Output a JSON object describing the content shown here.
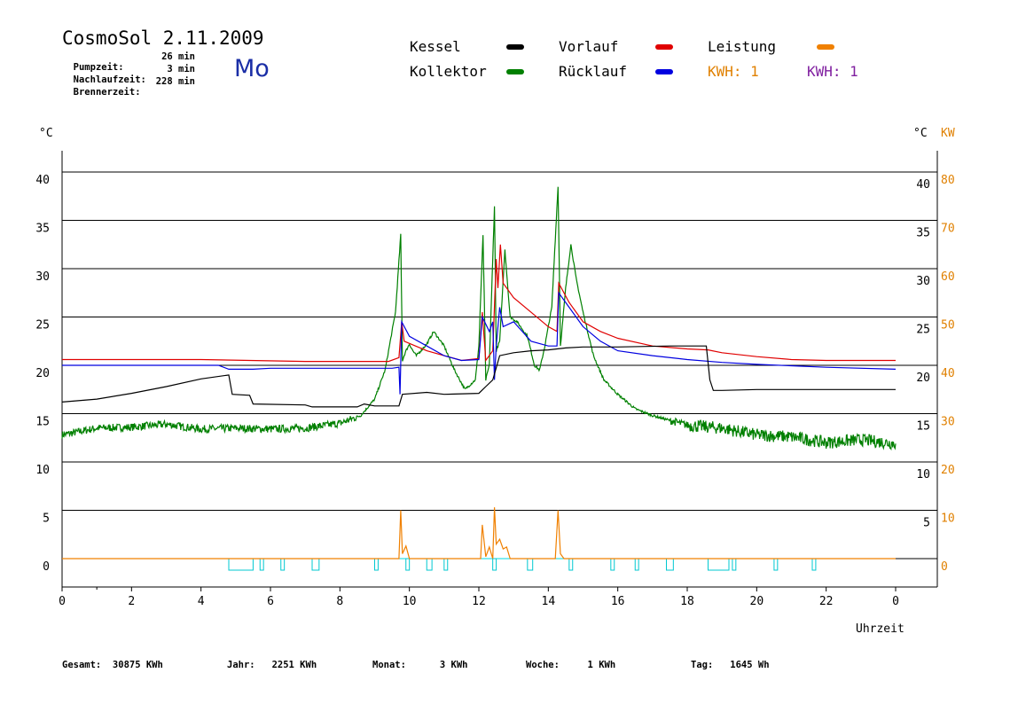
{
  "header": {
    "title": "CosmoSol 2.11.2009",
    "weekday": "Mo",
    "info": [
      {
        "label": "Pumpzeit:",
        "value": "26 min"
      },
      {
        "label": "Nachlaufzeit:",
        "value": "3 min"
      },
      {
        "label": "Brennerzeit:",
        "value": "228 min"
      }
    ]
  },
  "legend": {
    "items": [
      {
        "label": "Kessel",
        "color": "#000000"
      },
      {
        "label": "Vorlauf",
        "color": "#e00000"
      },
      {
        "label": "Leistung",
        "color": "#f08000"
      },
      {
        "label": "Kollektor",
        "color": "#008000"
      },
      {
        "label": "Rücklauf",
        "color": "#0000e0"
      }
    ],
    "kwh": [
      {
        "label": "KWH: 1",
        "color": "#e08000"
      },
      {
        "label": "KWH: 1",
        "color": "#8020a0"
      }
    ]
  },
  "axes": {
    "left_unit": "°C",
    "right_unit_c": "°C",
    "right_unit_kw": "KW",
    "xlabel": "Uhrzeit"
  },
  "footer": [
    {
      "label": "Gesamt:",
      "value": "30875 KWh"
    },
    {
      "label": "Jahr:",
      "value": "2251 KWh"
    },
    {
      "label": "Monat:",
      "value": "3 KWh"
    },
    {
      "label": "Woche:",
      "value": "1 KWh"
    },
    {
      "label": "Tag:",
      "value": "1645 Wh"
    }
  ],
  "chart_data": {
    "type": "line",
    "title": "CosmoSol 2.11.2009",
    "xlabel": "Uhrzeit",
    "ylabel": "°C",
    "y2label": "KW",
    "xlim": [
      0,
      24
    ],
    "ylim": [
      -3,
      45
    ],
    "grid": true,
    "x_ticks": [
      "0",
      "2",
      "4",
      "6",
      "8",
      "10",
      "12",
      "14",
      "16",
      "18",
      "20",
      "22",
      "0"
    ],
    "y_ticks_left": [
      0,
      5,
      10,
      15,
      20,
      25,
      30,
      35,
      40
    ],
    "y_ticks_right_c": [
      5,
      10,
      15,
      20,
      25,
      30,
      35,
      40
    ],
    "y_ticks_right_kw": [
      0,
      10,
      20,
      30,
      40,
      50,
      60,
      70,
      80
    ],
    "series": [
      {
        "name": "Kollektor",
        "color": "#008000",
        "points": [
          [
            0,
            12.8
          ],
          [
            1,
            13.5
          ],
          [
            2,
            13.6
          ],
          [
            3,
            13.9
          ],
          [
            4,
            13.4
          ],
          [
            5,
            13.5
          ],
          [
            6,
            13.4
          ],
          [
            7,
            13.5
          ],
          [
            8,
            14.0
          ],
          [
            8.6,
            14.8
          ],
          [
            9.0,
            16.5
          ],
          [
            9.3,
            19.5
          ],
          [
            9.6,
            25.5
          ],
          [
            9.75,
            33.5
          ],
          [
            9.8,
            20.5
          ],
          [
            9.9,
            21.5
          ],
          [
            10.0,
            22.2
          ],
          [
            10.1,
            21.5
          ],
          [
            10.2,
            21.0
          ],
          [
            10.5,
            22.2
          ],
          [
            10.7,
            23.5
          ],
          [
            11.0,
            22.0
          ],
          [
            11.3,
            19.5
          ],
          [
            11.6,
            17.5
          ],
          [
            11.9,
            18.5
          ],
          [
            12.0,
            22.0
          ],
          [
            12.12,
            33.5
          ],
          [
            12.2,
            18.5
          ],
          [
            12.3,
            20.0
          ],
          [
            12.45,
            36.5
          ],
          [
            12.5,
            21.5
          ],
          [
            12.6,
            22.5
          ],
          [
            12.75,
            32.0
          ],
          [
            12.9,
            25.0
          ],
          [
            13.1,
            24.5
          ],
          [
            13.4,
            23.0
          ],
          [
            13.6,
            20.0
          ],
          [
            13.75,
            19.5
          ],
          [
            13.9,
            22.0
          ],
          [
            14.1,
            26.0
          ],
          [
            14.2,
            33.0
          ],
          [
            14.28,
            38.5
          ],
          [
            14.35,
            22.0
          ],
          [
            14.5,
            28.0
          ],
          [
            14.65,
            32.5
          ],
          [
            14.8,
            29.0
          ],
          [
            15.0,
            25.5
          ],
          [
            15.3,
            21.0
          ],
          [
            15.6,
            18.5
          ],
          [
            16.0,
            17.0
          ],
          [
            16.5,
            15.5
          ],
          [
            17.0,
            14.8
          ],
          [
            18.0,
            13.8
          ],
          [
            19.0,
            13.5
          ],
          [
            20.0,
            12.8
          ],
          [
            21.0,
            12.6
          ],
          [
            22.0,
            12.0
          ],
          [
            23.0,
            12.3
          ],
          [
            24.0,
            11.9
          ]
        ],
        "noisy": true
      },
      {
        "name": "Vorlauf",
        "color": "#e00000",
        "points": [
          [
            0,
            20.6
          ],
          [
            4,
            20.6
          ],
          [
            7,
            20.4
          ],
          [
            8,
            20.4
          ],
          [
            9.4,
            20.4
          ],
          [
            9.7,
            20.8
          ],
          [
            9.78,
            24.5
          ],
          [
            9.85,
            22.5
          ],
          [
            10.5,
            21.5
          ],
          [
            11.5,
            20.5
          ],
          [
            12.0,
            20.7
          ],
          [
            12.1,
            25.5
          ],
          [
            12.2,
            20.5
          ],
          [
            12.4,
            21.5
          ],
          [
            12.5,
            31.0
          ],
          [
            12.55,
            28.0
          ],
          [
            12.62,
            32.5
          ],
          [
            12.7,
            28.5
          ],
          [
            13.0,
            27.0
          ],
          [
            13.5,
            25.5
          ],
          [
            14.0,
            24.0
          ],
          [
            14.25,
            23.5
          ],
          [
            14.3,
            28.5
          ],
          [
            14.6,
            26.5
          ],
          [
            15.0,
            24.5
          ],
          [
            15.5,
            23.5
          ],
          [
            16.0,
            22.8
          ],
          [
            17.0,
            22.0
          ],
          [
            18.0,
            21.7
          ],
          [
            18.6,
            21.6
          ],
          [
            19.0,
            21.3
          ],
          [
            20.0,
            20.9
          ],
          [
            21.0,
            20.6
          ],
          [
            22.0,
            20.5
          ],
          [
            24.0,
            20.5
          ]
        ]
      },
      {
        "name": "Rücklauf",
        "color": "#0000e0",
        "points": [
          [
            0,
            20.0
          ],
          [
            4.5,
            20.0
          ],
          [
            4.8,
            19.6
          ],
          [
            5.5,
            19.6
          ],
          [
            6.0,
            19.7
          ],
          [
            8.0,
            19.7
          ],
          [
            9.5,
            19.7
          ],
          [
            9.7,
            19.8
          ],
          [
            9.73,
            17.0
          ],
          [
            9.78,
            24.5
          ],
          [
            10.0,
            23.0
          ],
          [
            10.5,
            22.0
          ],
          [
            11.0,
            21.0
          ],
          [
            11.5,
            20.5
          ],
          [
            12.0,
            20.6
          ],
          [
            12.1,
            25.0
          ],
          [
            12.3,
            23.5
          ],
          [
            12.4,
            24.5
          ],
          [
            12.45,
            18.5
          ],
          [
            12.5,
            22.0
          ],
          [
            12.6,
            26.0
          ],
          [
            12.7,
            24.0
          ],
          [
            13.0,
            24.5
          ],
          [
            13.5,
            22.5
          ],
          [
            14.0,
            22.0
          ],
          [
            14.25,
            22.0
          ],
          [
            14.3,
            27.5
          ],
          [
            14.5,
            26.5
          ],
          [
            15.0,
            24.0
          ],
          [
            15.5,
            22.5
          ],
          [
            16.0,
            21.5
          ],
          [
            17.0,
            21.0
          ],
          [
            18.0,
            20.6
          ],
          [
            19.0,
            20.3
          ],
          [
            20.0,
            20.1
          ],
          [
            22.0,
            19.8
          ],
          [
            24.0,
            19.6
          ]
        ]
      },
      {
        "name": "Kessel",
        "color": "#000000",
        "points": [
          [
            0,
            16.2
          ],
          [
            1,
            16.5
          ],
          [
            2,
            17.1
          ],
          [
            3,
            17.8
          ],
          [
            4,
            18.6
          ],
          [
            4.8,
            19.0
          ],
          [
            4.9,
            17.0
          ],
          [
            5.4,
            16.9
          ],
          [
            5.5,
            16.0
          ],
          [
            7.0,
            15.9
          ],
          [
            7.2,
            15.7
          ],
          [
            8.5,
            15.7
          ],
          [
            8.7,
            16.0
          ],
          [
            9.0,
            15.8
          ],
          [
            9.7,
            15.8
          ],
          [
            9.8,
            17.0
          ],
          [
            10.5,
            17.2
          ],
          [
            11.0,
            17.0
          ],
          [
            12.0,
            17.1
          ],
          [
            12.2,
            17.8
          ],
          [
            12.4,
            18.5
          ],
          [
            12.6,
            21.0
          ],
          [
            13.0,
            21.3
          ],
          [
            13.5,
            21.5
          ],
          [
            14.0,
            21.6
          ],
          [
            14.5,
            21.8
          ],
          [
            15.0,
            21.9
          ],
          [
            16.0,
            21.9
          ],
          [
            17.5,
            22.0
          ],
          [
            18.55,
            22.0
          ],
          [
            18.65,
            18.5
          ],
          [
            18.75,
            17.4
          ],
          [
            19.0,
            17.4
          ],
          [
            20.0,
            17.5
          ],
          [
            24.0,
            17.5
          ]
        ]
      },
      {
        "name": "Leistung",
        "color": "#f08000",
        "points": [
          [
            0,
            0
          ],
          [
            9.7,
            0
          ],
          [
            9.75,
            5.0
          ],
          [
            9.8,
            0.5
          ],
          [
            9.9,
            1.3
          ],
          [
            10.0,
            0
          ],
          [
            12.05,
            0
          ],
          [
            12.1,
            3.5
          ],
          [
            12.2,
            0.2
          ],
          [
            12.3,
            1.2
          ],
          [
            12.4,
            0
          ],
          [
            12.45,
            5.3
          ],
          [
            12.5,
            1.5
          ],
          [
            12.6,
            2.0
          ],
          [
            12.7,
            1.0
          ],
          [
            12.8,
            1.2
          ],
          [
            12.9,
            0
          ],
          [
            14.2,
            0
          ],
          [
            14.28,
            5.0
          ],
          [
            14.35,
            0.5
          ],
          [
            14.45,
            0
          ],
          [
            24,
            0
          ]
        ]
      },
      {
        "name": "Pumpe",
        "color": "#00c8d0",
        "type": "step",
        "pulses": [
          [
            4.8,
            5.5
          ],
          [
            5.7,
            5.8
          ],
          [
            6.3,
            6.4
          ],
          [
            7.2,
            7.4
          ],
          [
            9.0,
            9.1
          ],
          [
            9.9,
            10.0
          ],
          [
            10.5,
            10.65
          ],
          [
            11.0,
            11.1
          ],
          [
            12.4,
            12.5
          ],
          [
            13.4,
            13.55
          ],
          [
            14.6,
            14.7
          ],
          [
            15.8,
            15.9
          ],
          [
            16.5,
            16.6
          ],
          [
            17.4,
            17.6
          ],
          [
            18.6,
            19.2
          ],
          [
            19.3,
            19.4
          ],
          [
            20.5,
            20.6
          ],
          [
            21.6,
            21.7
          ]
        ],
        "level": 0.0
      }
    ]
  }
}
